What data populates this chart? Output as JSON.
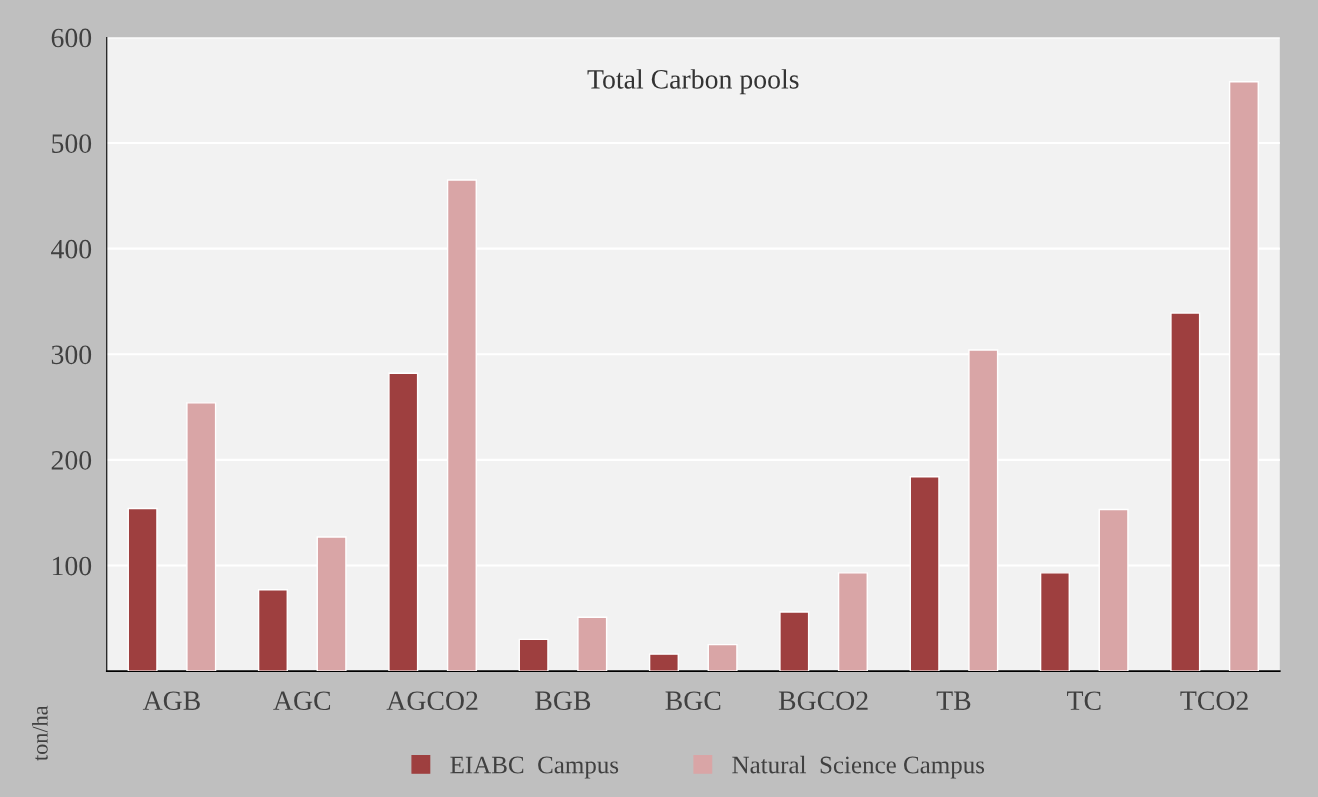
{
  "chart_data": {
    "type": "bar",
    "title": "Total Carbon pools",
    "ylabel": "ton/ha",
    "categories": [
      "AGB",
      "AGC",
      "AGCO2",
      "BGB",
      "BGC",
      "BGCO2",
      "TB",
      "TC",
      "TCO2"
    ],
    "series": [
      {
        "name": "EIABC  Campus",
        "color": "#9e3f3f",
        "values": [
          154,
          77,
          282,
          30,
          16,
          56,
          184,
          93,
          339
        ]
      },
      {
        "name": "Natural  Science Campus",
        "color": "#d9a5a6",
        "values": [
          254,
          127,
          465,
          51,
          25,
          93,
          304,
          153,
          558
        ]
      }
    ],
    "ylim": [
      0,
      600
    ],
    "yticks": [
      {
        "value": 0,
        "label": null
      },
      100,
      200,
      300,
      400,
      500,
      600
    ],
    "grid": "y",
    "legend": "bottom"
  }
}
